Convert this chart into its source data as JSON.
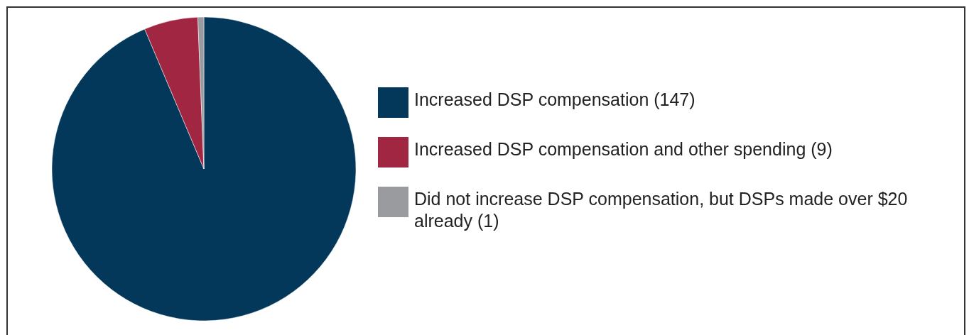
{
  "chart_data": {
    "type": "pie",
    "categories": [
      "Increased DSP compensation (147)",
      "Increased DSP compensation and other spending (9)",
      "Did not increase DSP compensation, but DSPs made over $20 already (1)"
    ],
    "values": [
      147,
      9,
      1
    ],
    "colors": [
      "#03385a",
      "#a12641",
      "#9a9b9f"
    ],
    "legend": "right"
  }
}
